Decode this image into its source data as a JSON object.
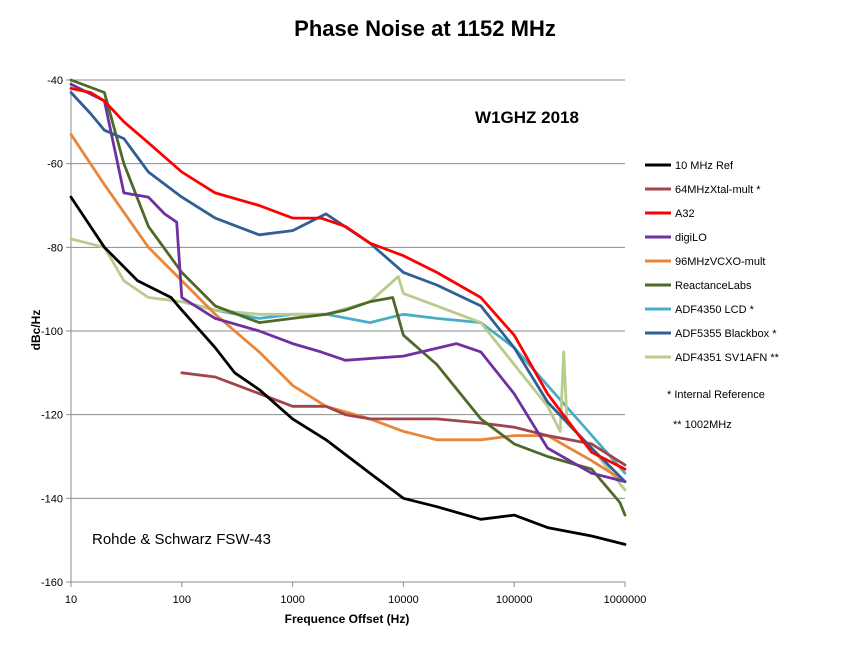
{
  "chart_data": {
    "type": "line",
    "title": "Phase Noise at 1152 MHz",
    "xlabel": "Frequence Offset (Hz)",
    "ylabel": "dBc/Hz",
    "xscale": "log",
    "xlim": [
      10,
      1000000
    ],
    "ylim": [
      -160,
      -40
    ],
    "x_ticks": [
      "10",
      "100",
      "1000",
      "10000",
      "100000",
      "1000000"
    ],
    "y_ticks": [
      "-40",
      "-60",
      "-80",
      "-100",
      "-120",
      "-140",
      "-160"
    ],
    "grid": "horizontal",
    "legend_position": "right",
    "annotations": {
      "top_right": "W1GHZ 2018",
      "bottom_left": "Rohde & Schwarz FSW-43"
    },
    "notes": [
      "* Internal Reference",
      "** 1002MHz"
    ],
    "series": [
      {
        "name": "10 MHz Ref",
        "color": "#000000",
        "x": [
          10,
          20,
          40,
          80,
          100,
          200,
          300,
          500,
          1000,
          2000,
          5000,
          10000,
          20000,
          50000,
          100000,
          200000,
          500000,
          1000000
        ],
        "y": [
          -68,
          -80,
          -88,
          -92,
          -95,
          -104,
          -110,
          -114,
          -121,
          -126,
          -134,
          -140,
          -142,
          -145,
          -144,
          -147,
          -149,
          -151
        ]
      },
      {
        "name": "64MHzXtal-mult *",
        "color": "#a0454a",
        "x": [
          100,
          200,
          400,
          1000,
          2000,
          3000,
          5000,
          10000,
          20000,
          50000,
          100000,
          200000,
          500000,
          1000000
        ],
        "y": [
          -110,
          -111,
          -114,
          -118,
          -118,
          -120,
          -121,
          -121,
          -121,
          -122,
          -123,
          -125,
          -127,
          -132
        ]
      },
      {
        "name": "A32",
        "color": "#ff0000",
        "x": [
          10,
          15,
          20,
          30,
          50,
          100,
          200,
          500,
          1000,
          1800,
          3000,
          5000,
          10000,
          20000,
          50000,
          100000,
          200000,
          500000,
          1000000
        ],
        "y": [
          -42,
          -43,
          -45,
          -50,
          -55,
          -62,
          -67,
          -70,
          -73,
          -73,
          -75,
          -79,
          -82,
          -86,
          -92,
          -101,
          -115,
          -129,
          -133
        ]
      },
      {
        "name": "digiLO",
        "color": "#7030a0",
        "x": [
          10,
          20,
          30,
          50,
          70,
          90,
          100,
          200,
          500,
          1000,
          1800,
          3000,
          10000,
          30000,
          50000,
          100000,
          200000,
          500000,
          1000000
        ],
        "y": [
          -41,
          -45,
          -67,
          -68,
          -72,
          -74,
          -92,
          -97,
          -100,
          -103,
          -105,
          -107,
          -106,
          -103,
          -105,
          -115,
          -128,
          -134,
          -136
        ]
      },
      {
        "name": "96MHzVCXO-mult",
        "color": "#e8863a",
        "x": [
          10,
          20,
          50,
          100,
          200,
          500,
          1000,
          2000,
          5000,
          10000,
          20000,
          50000,
          100000,
          200000,
          500000,
          1000000
        ],
        "y": [
          -53,
          -65,
          -80,
          -88,
          -96,
          -105,
          -113,
          -118,
          -121,
          -124,
          -126,
          -126,
          -125,
          -125,
          -131,
          -136
        ]
      },
      {
        "name": "ReactanceLabs",
        "color": "#4e6a28",
        "x": [
          10,
          20,
          30,
          50,
          100,
          200,
          500,
          1000,
          2000,
          3000,
          5000,
          8000,
          10000,
          20000,
          50000,
          100000,
          200000,
          500000,
          900000,
          1000000
        ],
        "y": [
          -40,
          -43,
          -60,
          -75,
          -86,
          -94,
          -98,
          -97,
          -96,
          -95,
          -93,
          -92,
          -101,
          -108,
          -121,
          -127,
          -130,
          -133,
          -141,
          -144
        ]
      },
      {
        "name": "ADF4350 LCD *",
        "color": "#4bacc6",
        "x": [
          100,
          200,
          500,
          1000,
          2000,
          5000,
          10000,
          20000,
          50000,
          100000,
          200000,
          400000,
          1000000
        ],
        "y": [
          -93,
          -95,
          -97,
          -96,
          -96,
          -98,
          -96,
          -97,
          -98,
          -104,
          -113,
          -122,
          -134
        ]
      },
      {
        "name": "ADF5355 Blackbox *",
        "color": "#2f5f95",
        "x": [
          10,
          15,
          20,
          30,
          50,
          100,
          200,
          500,
          1000,
          2000,
          5000,
          10000,
          20000,
          50000,
          100000,
          200000,
          500000,
          1000000
        ],
        "y": [
          -43,
          -48,
          -52,
          -54,
          -62,
          -68,
          -73,
          -77,
          -76,
          -72,
          -79,
          -86,
          -89,
          -94,
          -104,
          -117,
          -128,
          -136
        ]
      },
      {
        "name": "ADF4351 SV1AFN **",
        "color": "#b8cc8c",
        "x": [
          10,
          20,
          30,
          50,
          100,
          200,
          500,
          1000,
          2000,
          5000,
          9000,
          10000,
          20000,
          50000,
          100000,
          200000,
          260000,
          280000,
          300000,
          500000,
          1000000
        ],
        "y": [
          -78,
          -80,
          -88,
          -92,
          -93,
          -95,
          -96,
          -96,
          -96,
          -93,
          -87,
          -91,
          -94,
          -98,
          -108,
          -118,
          -124,
          -105,
          -122,
          -128,
          -138
        ]
      }
    ]
  }
}
